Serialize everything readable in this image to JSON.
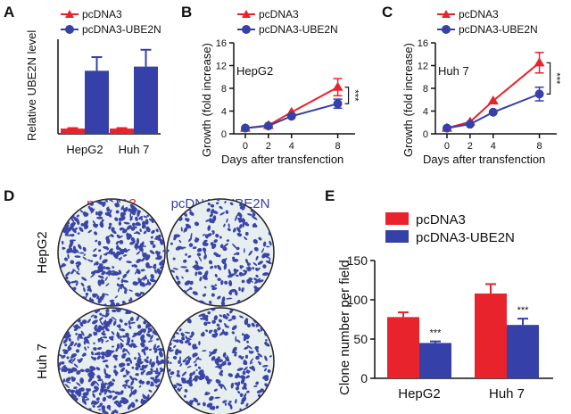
{
  "panels": {
    "A": "A",
    "B": "B",
    "C": "C",
    "D": "D",
    "E": "E"
  },
  "colors": {
    "pcDNA3": "#e8232b",
    "UBE2N": "#3540a8",
    "plate_bg": "#e6eef0",
    "colony": "#3b45a6"
  },
  "legend": {
    "ctrl": "pcDNA3",
    "ube2n": "pcDNA3-UBE2N"
  },
  "panel_d": {
    "col_labels": [
      "pcDNA3",
      "pcDNA3-UBE2N"
    ],
    "row_labels": [
      "HepG2",
      "Huh 7"
    ]
  },
  "chart_data": [
    {
      "id": "A",
      "type": "bar",
      "ylabel": "Relative UBE2N level",
      "categories": [
        "HepG2",
        "Huh 7"
      ],
      "ylim": [
        0,
        18
      ],
      "series": [
        {
          "name": "pcDNA3",
          "values": [
            1,
            1
          ],
          "errors": [
            0.1,
            0.1
          ]
        },
        {
          "name": "pcDNA3-UBE2N",
          "values": [
            12,
            12.8
          ],
          "errors": [
            2.6,
            3.2
          ]
        }
      ]
    },
    {
      "id": "B",
      "type": "line",
      "title": "HepG2",
      "xlabel": "Days after transfenction",
      "ylabel": "Growth (fold increase)",
      "x": [
        0,
        2,
        4,
        8
      ],
      "xlim": [
        -1,
        9.5
      ],
      "ylim": [
        0,
        16
      ],
      "yticks": [
        0,
        4,
        8,
        12,
        16
      ],
      "series": [
        {
          "name": "pcDNA3",
          "values": [
            1,
            1.5,
            3.8,
            8.2
          ],
          "errors": [
            0.2,
            0.2,
            0.3,
            1.5
          ]
        },
        {
          "name": "pcDNA3-UBE2N",
          "values": [
            1,
            1.4,
            3.1,
            5.3
          ],
          "errors": [
            0.2,
            0.2,
            0.3,
            0.8
          ]
        }
      ],
      "significance": "***"
    },
    {
      "id": "C",
      "type": "line",
      "title": "Huh 7",
      "xlabel": "Days after transfenction",
      "ylabel": "Growth (fold increase)",
      "x": [
        0,
        2,
        4,
        8
      ],
      "xlim": [
        -1,
        9.5
      ],
      "ylim": [
        0,
        16
      ],
      "yticks": [
        0,
        4,
        8,
        12,
        16
      ],
      "series": [
        {
          "name": "pcDNA3",
          "values": [
            1,
            2.1,
            5.8,
            12.5
          ],
          "errors": [
            0.2,
            0.2,
            0.3,
            1.8
          ]
        },
        {
          "name": "pcDNA3-UBE2N",
          "values": [
            1,
            1.7,
            3.8,
            7.0
          ],
          "errors": [
            0.2,
            0.2,
            0.3,
            1.2
          ]
        }
      ],
      "significance": "***"
    },
    {
      "id": "E",
      "type": "bar",
      "ylabel": "Clone number per field",
      "categories": [
        "HepG2",
        "Huh 7"
      ],
      "ylim": [
        0,
        150
      ],
      "yticks": [
        0,
        50,
        100,
        150
      ],
      "series": [
        {
          "name": "pcDNA3",
          "values": [
            78,
            108
          ],
          "errors": [
            6,
            12
          ]
        },
        {
          "name": "pcDNA3-UBE2N",
          "values": [
            45,
            68
          ],
          "errors": [
            2,
            8
          ]
        }
      ],
      "significance": [
        "***",
        "***"
      ]
    }
  ]
}
